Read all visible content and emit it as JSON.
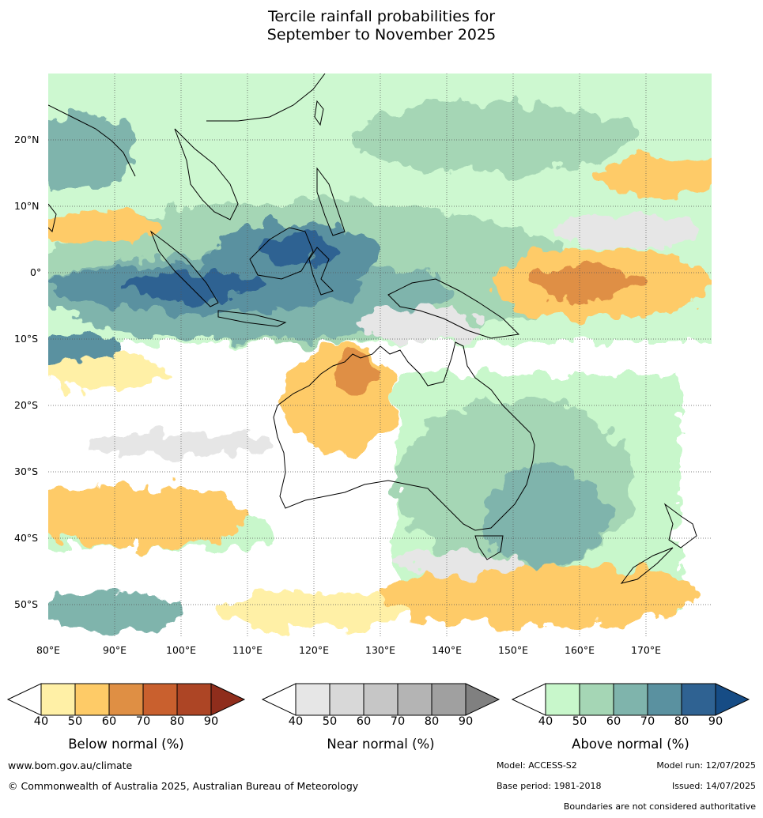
{
  "title_line1": "Tercile rainfall probabilities for",
  "title_line2": "September to November 2025",
  "lat_ticks": [
    "20°N",
    "10°N",
    "0°",
    "10°S",
    "20°S",
    "30°S",
    "40°S",
    "50°S"
  ],
  "lon_ticks": [
    "80°E",
    "90°E",
    "100°E",
    "110°E",
    "120°E",
    "130°E",
    "140°E",
    "150°E",
    "160°E",
    "170°E"
  ],
  "colorbars": [
    {
      "label": "Below normal (%)",
      "ticks": [
        "40",
        "50",
        "60",
        "70",
        "80",
        "90"
      ],
      "colors": [
        "#fff0a6",
        "#fecb67",
        "#df8f44",
        "#c9602e",
        "#ad4525",
        "#8f2d1c"
      ]
    },
    {
      "label": "Near normal (%)",
      "ticks": [
        "40",
        "50",
        "60",
        "70",
        "80",
        "90"
      ],
      "colors": [
        "#e6e6e6",
        "#d8d8d8",
        "#c6c6c6",
        "#b4b4b4",
        "#a0a0a0",
        "#808080"
      ]
    },
    {
      "label": "Above normal (%)",
      "ticks": [
        "40",
        "50",
        "60",
        "70",
        "80",
        "90"
      ],
      "colors": [
        "#c8f7cb",
        "#a5d6b5",
        "#7fb4ac",
        "#5a91a0",
        "#2f6292",
        "#164c85"
      ]
    }
  ],
  "footer": {
    "website": "www.bom.gov.au/climate",
    "copyright": "© Commonwealth of Australia 2025, Australian Bureau of Meteorology",
    "model": "Model: ACCESS-S2",
    "model_run": "Model run: 12/07/2025",
    "base_period": "Base period: 1981-2018",
    "issued": "Issued: 14/07/2025",
    "disclaimer": "Boundaries are not considered authoritative"
  }
}
